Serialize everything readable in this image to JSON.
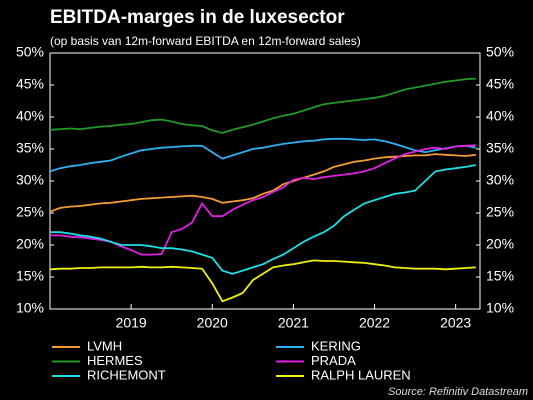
{
  "chart_data": {
    "type": "line",
    "title": "EBITDA-marges in de luxesector",
    "subtitle": "(op basis van 12m-forward EBITDA en 12m-forward sales)",
    "source": "Source: Refinitiv Datastream",
    "x": [
      2018,
      2018.125,
      2018.25,
      2018.375,
      2018.5,
      2018.625,
      2018.75,
      2018.875,
      2019,
      2019.125,
      2019.25,
      2019.375,
      2019.5,
      2019.625,
      2019.75,
      2019.875,
      2020,
      2020.125,
      2020.25,
      2020.375,
      2020.5,
      2020.625,
      2020.75,
      2020.875,
      2021,
      2021.125,
      2021.25,
      2021.375,
      2021.5,
      2021.625,
      2021.75,
      2021.875,
      2022,
      2022.125,
      2022.25,
      2022.375,
      2022.5,
      2022.625,
      2022.75,
      2022.875,
      2023,
      2023.125,
      2023.25
    ],
    "xlim": [
      2018,
      2023.3
    ],
    "xticks": [
      2019,
      2020,
      2021,
      2022,
      2023
    ],
    "ylim": [
      10,
      50
    ],
    "yticks": [
      {
        "value": 10,
        "label": "10%"
      },
      {
        "value": 15,
        "label": "15%"
      },
      {
        "value": 20,
        "label": "20%"
      },
      {
        "value": 25,
        "label": "25%"
      },
      {
        "value": 30,
        "label": "30%"
      },
      {
        "value": 35,
        "label": "35%"
      },
      {
        "value": 40,
        "label": "40%"
      },
      {
        "value": 45,
        "label": "45%"
      },
      {
        "value": 50,
        "label": "50%"
      }
    ],
    "y2lim": [
      10,
      50
    ],
    "y2ticks": [
      {
        "value": 10,
        "label": "10%"
      },
      {
        "value": 15,
        "label": "15%"
      },
      {
        "value": 20,
        "label": "20%"
      },
      {
        "value": 25,
        "label": "25%"
      },
      {
        "value": 30,
        "label": "30%"
      },
      {
        "value": 35,
        "label": "35%"
      },
      {
        "value": 40,
        "label": "40%"
      },
      {
        "value": 45,
        "label": "45%"
      },
      {
        "value": 50,
        "label": "50%"
      }
    ],
    "series": [
      {
        "name": "LVMH",
        "color": "#f39c34",
        "values": [
          25.2,
          25.8,
          26,
          26.1,
          26.3,
          26.5,
          26.6,
          26.8,
          27,
          27.2,
          27.3,
          27.4,
          27.5,
          27.6,
          27.7,
          27.5,
          27.2,
          26.6,
          26.8,
          27,
          27.3,
          28,
          28.5,
          29.5,
          30,
          30.5,
          31,
          31.5,
          32.2,
          32.6,
          33,
          33.2,
          33.5,
          33.7,
          33.8,
          33.9,
          34,
          34,
          34.2,
          34.1,
          34,
          33.9,
          34.1
        ]
      },
      {
        "name": "KERING",
        "color": "#2fb1f0",
        "values": [
          31.5,
          32,
          32.3,
          32.5,
          32.8,
          33,
          33.2,
          33.8,
          34.3,
          34.8,
          35,
          35.2,
          35.3,
          35.4,
          35.5,
          35.5,
          34.5,
          33.5,
          34,
          34.5,
          35,
          35.2,
          35.5,
          35.8,
          36,
          36.2,
          36.3,
          36.5,
          36.6,
          36.6,
          36.5,
          36.4,
          36.5,
          36.2,
          35.8,
          35.3,
          34.8,
          34.5,
          34.8,
          35.1,
          35.4,
          35.5,
          35.2
        ]
      },
      {
        "name": "HERMES",
        "color": "#1f9a2a",
        "values": [
          38,
          38.1,
          38.2,
          38.1,
          38.3,
          38.5,
          38.6,
          38.8,
          38.9,
          39.2,
          39.5,
          39.6,
          39.3,
          38.9,
          38.7,
          38.6,
          37.9,
          37.5,
          38,
          38.4,
          38.8,
          39.3,
          39.8,
          40.2,
          40.5,
          41,
          41.5,
          42,
          42.2,
          42.4,
          42.6,
          42.8,
          43,
          43.3,
          43.8,
          44.3,
          44.6,
          44.9,
          45.2,
          45.5,
          45.7,
          45.9,
          46
        ]
      },
      {
        "name": "PRADA",
        "color": "#e020e0",
        "values": [
          21.5,
          21.5,
          21.3,
          21.2,
          21,
          20.8,
          20.5,
          19.8,
          19.2,
          18.5,
          18.5,
          18.6,
          22,
          22.5,
          23.5,
          26.5,
          24.5,
          24.5,
          25.5,
          26.3,
          27,
          27.5,
          28.3,
          29,
          30.2,
          30.5,
          30.3,
          30.6,
          30.8,
          31,
          31.2,
          31.5,
          32,
          32.8,
          33.5,
          34.2,
          34.6,
          35,
          35.2,
          35,
          35.4,
          35.5,
          35.6
        ]
      },
      {
        "name": "RICHEMONT",
        "color": "#1fe0e6",
        "values": [
          22,
          22,
          21.8,
          21.5,
          21.3,
          21,
          20.5,
          20,
          20,
          20,
          19.8,
          19.5,
          19.5,
          19.3,
          19,
          18.5,
          18,
          16,
          15.5,
          16,
          16.5,
          17,
          17.8,
          18.5,
          19.5,
          20.5,
          21.3,
          22,
          23,
          24.5,
          25.5,
          26.5,
          27,
          27.5,
          28,
          28.2,
          28.5,
          30,
          31.5,
          31.8,
          32,
          32.2,
          32.5
        ]
      },
      {
        "name": "RALPH LAUREN",
        "color": "#f0f010",
        "values": [
          16.2,
          16.3,
          16.3,
          16.4,
          16.4,
          16.5,
          16.5,
          16.5,
          16.5,
          16.6,
          16.5,
          16.5,
          16.6,
          16.5,
          16.4,
          16.3,
          14,
          11.2,
          11.8,
          12.5,
          14.5,
          15.5,
          16.5,
          16.8,
          17,
          17.3,
          17.6,
          17.5,
          17.5,
          17.4,
          17.3,
          17.2,
          17,
          16.8,
          16.5,
          16.4,
          16.3,
          16.3,
          16.3,
          16.2,
          16.3,
          16.4,
          16.5
        ]
      }
    ]
  }
}
